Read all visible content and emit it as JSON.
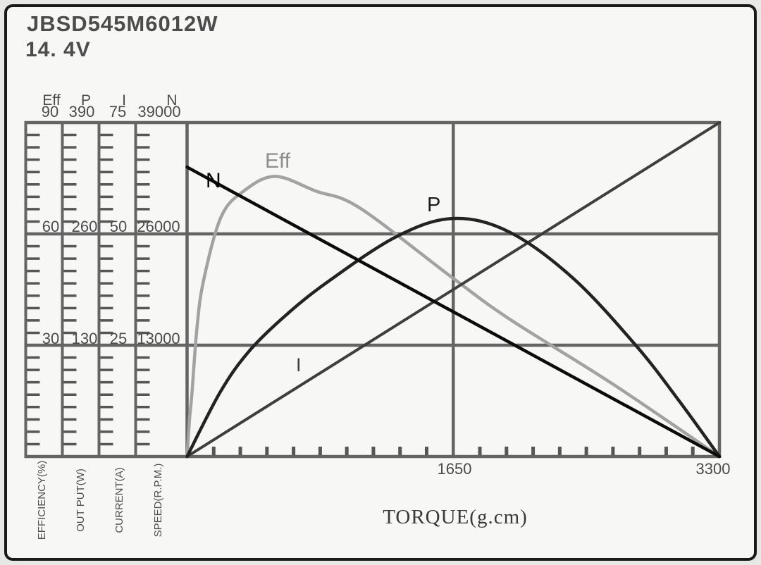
{
  "window": {
    "title_model": "JBSD545M6012W",
    "title_voltage": "14. 4V"
  },
  "x_axis": {
    "title": "TORQUE(g.cm)",
    "mid_tick_label": "1650",
    "max_tick_label": "3300",
    "min": 0,
    "max": 3300,
    "minor_divisions": 20
  },
  "left_scales": [
    {
      "name": "Eff",
      "unit_label": "EFFICIENCY(%)",
      "max": 90,
      "tick_values": [
        "90",
        "60",
        "30"
      ]
    },
    {
      "name": "P",
      "unit_label": "OUT PUT(W)",
      "max": 390,
      "tick_values": [
        "390",
        "260",
        "130"
      ]
    },
    {
      "name": "I",
      "unit_label": "CURRENT(A)",
      "max": 75,
      "tick_values": [
        "75",
        "50",
        "25"
      ]
    },
    {
      "name": "N",
      "unit_label": "SPEED(R.P.M.)",
      "max": 39000,
      "tick_values": [
        "39000",
        "26000",
        "13000"
      ]
    }
  ],
  "colors": {
    "grid": "#646464",
    "tick": "#565656",
    "speed_curve": "#0b0b0b",
    "efficiency_curve": "#a2a2a2",
    "power_curve": "#232323",
    "current_curve": "#3e3e3e"
  },
  "chart_data": {
    "type": "line",
    "title": "JBSD545M6012W 14.4V motor performance curves",
    "xlabel": "TORQUE(g.cm)",
    "xlim": [
      0,
      3300
    ],
    "grid": "horizontal thirds across all scales; vertical line at 1650",
    "legend_position": "inline curve labels",
    "series": [
      {
        "name": "speed",
        "label": "N",
        "axis": "SPEED(R.P.M.)",
        "axis_max": 39000,
        "smooth": false,
        "points": [
          [
            0,
            33800
          ],
          [
            3300,
            0
          ]
        ]
      },
      {
        "name": "efficiency",
        "label": "Eff",
        "axis": "EFFICIENCY(%)",
        "axis_max": 90,
        "smooth": true,
        "points": [
          [
            0,
            0
          ],
          [
            15,
            10
          ],
          [
            30,
            17
          ],
          [
            60,
            34
          ],
          [
            100,
            47
          ],
          [
            210,
            64.5
          ],
          [
            350,
            71.5
          ],
          [
            545,
            75.5
          ],
          [
            800,
            71.5
          ],
          [
            1070,
            67
          ],
          [
            1650,
            48
          ],
          [
            2000,
            37
          ],
          [
            2640,
            19.5
          ],
          [
            3300,
            0
          ]
        ]
      },
      {
        "name": "power",
        "label": "P",
        "axis": "OUT PUT(W)",
        "axis_max": 390,
        "smooth": true,
        "points": [
          [
            0,
            0
          ],
          [
            205,
            75
          ],
          [
            380,
            122
          ],
          [
            600,
            163
          ],
          [
            872,
            204
          ],
          [
            1300,
            257
          ],
          [
            1650,
            278
          ],
          [
            2000,
            262
          ],
          [
            2400,
            207
          ],
          [
            2790,
            128
          ],
          [
            3050,
            65
          ],
          [
            3300,
            0
          ]
        ]
      },
      {
        "name": "current",
        "label": "I",
        "axis": "CURRENT(A)",
        "axis_max": 75,
        "smooth": false,
        "points": [
          [
            0,
            0
          ],
          [
            3300,
            75
          ]
        ]
      }
    ]
  }
}
